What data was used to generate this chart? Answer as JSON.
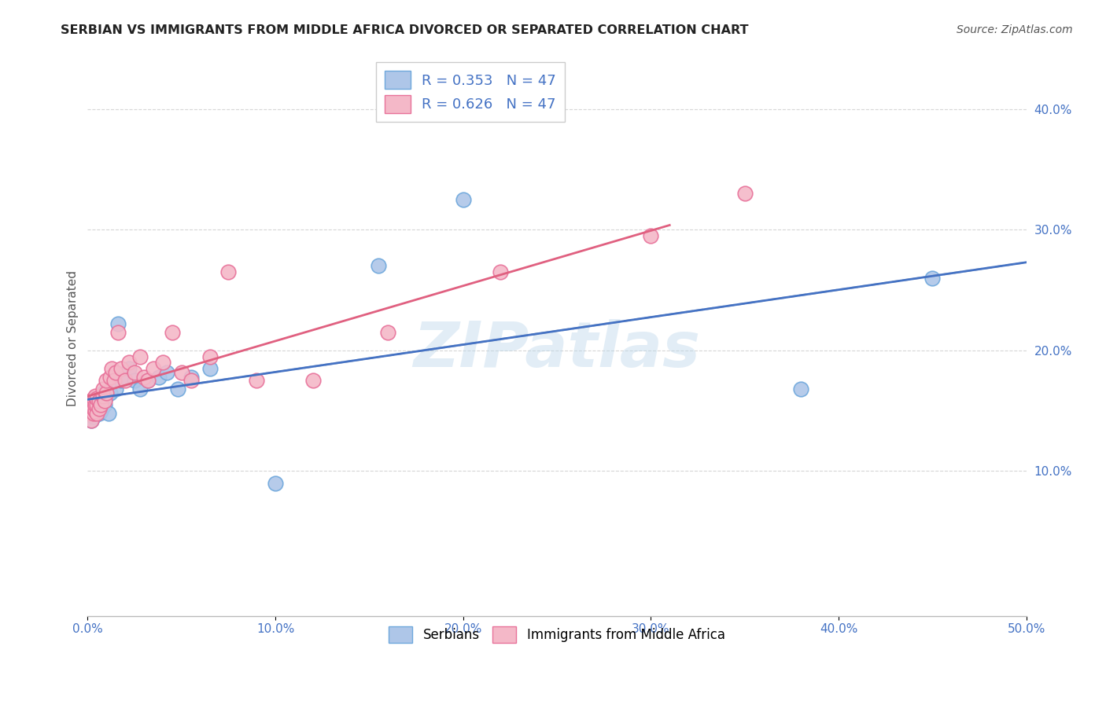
{
  "title": "SERBIAN VS IMMIGRANTS FROM MIDDLE AFRICA DIVORCED OR SEPARATED CORRELATION CHART",
  "source": "Source: ZipAtlas.com",
  "ylabel": "Divorced or Separated",
  "xlim": [
    0.0,
    0.5
  ],
  "ylim": [
    -0.02,
    0.44
  ],
  "x_ticks": [
    0.0,
    0.1,
    0.2,
    0.3,
    0.4,
    0.5
  ],
  "x_tick_labels": [
    "0.0%",
    "10.0%",
    "20.0%",
    "30.0%",
    "40.0%",
    "50.0%"
  ],
  "y_ticks": [
    0.1,
    0.2,
    0.3,
    0.4
  ],
  "y_tick_labels": [
    "10.0%",
    "20.0%",
    "30.0%",
    "40.0%"
  ],
  "legend_r1": "R = 0.353",
  "legend_n1": "N = 47",
  "legend_r2": "R = 0.626",
  "legend_n2": "N = 47",
  "serbian_face_color": "#aec6e8",
  "serbian_edge_color": "#6fa8dc",
  "immigrant_face_color": "#f4b8c8",
  "immigrant_edge_color": "#e8729a",
  "serbian_line_color": "#4472c4",
  "immigrant_line_color": "#e06080",
  "watermark": "ZIPatlas",
  "serbians_x": [
    0.001,
    0.001,
    0.001,
    0.002,
    0.002,
    0.002,
    0.002,
    0.003,
    0.003,
    0.003,
    0.003,
    0.004,
    0.004,
    0.004,
    0.004,
    0.005,
    0.005,
    0.005,
    0.006,
    0.006,
    0.007,
    0.007,
    0.008,
    0.008,
    0.009,
    0.01,
    0.011,
    0.012,
    0.014,
    0.015,
    0.016,
    0.018,
    0.02,
    0.022,
    0.025,
    0.028,
    0.032,
    0.038,
    0.042,
    0.048,
    0.055,
    0.065,
    0.1,
    0.155,
    0.2,
    0.38,
    0.45
  ],
  "serbians_y": [
    0.145,
    0.148,
    0.15,
    0.142,
    0.148,
    0.152,
    0.155,
    0.145,
    0.148,
    0.152,
    0.158,
    0.148,
    0.152,
    0.155,
    0.16,
    0.15,
    0.155,
    0.158,
    0.148,
    0.155,
    0.15,
    0.162,
    0.158,
    0.165,
    0.155,
    0.162,
    0.148,
    0.165,
    0.175,
    0.168,
    0.222,
    0.175,
    0.178,
    0.185,
    0.175,
    0.168,
    0.175,
    0.178,
    0.182,
    0.168,
    0.178,
    0.185,
    0.09,
    0.27,
    0.325,
    0.168,
    0.26
  ],
  "immigrants_x": [
    0.001,
    0.001,
    0.002,
    0.002,
    0.002,
    0.003,
    0.003,
    0.003,
    0.004,
    0.004,
    0.004,
    0.005,
    0.005,
    0.005,
    0.006,
    0.006,
    0.007,
    0.008,
    0.008,
    0.009,
    0.01,
    0.01,
    0.012,
    0.013,
    0.014,
    0.015,
    0.016,
    0.018,
    0.02,
    0.022,
    0.025,
    0.028,
    0.03,
    0.032,
    0.035,
    0.04,
    0.045,
    0.05,
    0.055,
    0.065,
    0.075,
    0.09,
    0.12,
    0.16,
    0.22,
    0.3,
    0.35
  ],
  "immigrants_y": [
    0.148,
    0.155,
    0.142,
    0.15,
    0.158,
    0.148,
    0.152,
    0.16,
    0.15,
    0.155,
    0.162,
    0.148,
    0.155,
    0.16,
    0.152,
    0.158,
    0.155,
    0.162,
    0.168,
    0.158,
    0.165,
    0.175,
    0.178,
    0.185,
    0.175,
    0.182,
    0.215,
    0.185,
    0.175,
    0.19,
    0.182,
    0.195,
    0.178,
    0.175,
    0.185,
    0.19,
    0.215,
    0.182,
    0.175,
    0.195,
    0.265,
    0.175,
    0.175,
    0.215,
    0.265,
    0.295,
    0.33
  ]
}
